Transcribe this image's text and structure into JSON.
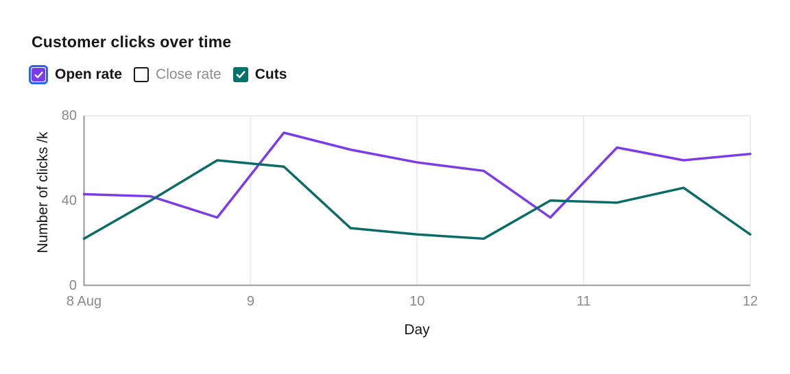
{
  "title": "Customer clicks over time",
  "legend": {
    "items": [
      {
        "label": "Open rate",
        "checked": true,
        "focused": true,
        "color": "#7c3aed"
      },
      {
        "label": "Close rate",
        "checked": false,
        "focused": false,
        "color": "#ffffff"
      },
      {
        "label": "Cuts",
        "checked": true,
        "focused": false,
        "color": "#00716b"
      }
    ]
  },
  "chart_data": {
    "type": "line",
    "title": "Customer clicks over time",
    "xlabel": "Day",
    "ylabel": "Number of clicks /k",
    "x": [
      8,
      8.4,
      8.8,
      9.2,
      9.6,
      10,
      10.4,
      10.8,
      11.2,
      11.6,
      12
    ],
    "x_ticks": [
      8,
      9,
      10,
      11,
      12
    ],
    "x_tick_labels": [
      "8 Aug",
      "9",
      "10",
      "11",
      "12"
    ],
    "y_ticks": [
      0,
      40,
      80
    ],
    "ylim": [
      0,
      80
    ],
    "xlim": [
      8,
      12
    ],
    "grid": "vertical-gridlines-plus-top-right-frame",
    "legend_position": "top-left",
    "series": [
      {
        "name": "Open rate",
        "color": "#7c3aed",
        "visible": true,
        "values": [
          43,
          42,
          32,
          72,
          64,
          58,
          54,
          32,
          65,
          59,
          62
        ]
      },
      {
        "name": "Close rate",
        "color": "#ffffff",
        "visible": false,
        "values": []
      },
      {
        "name": "Cuts",
        "color": "#0b6b66",
        "visible": true,
        "values": [
          22,
          40,
          59,
          56,
          27,
          24,
          22,
          40,
          39,
          46,
          24
        ]
      }
    ]
  },
  "colors": {
    "background": "#ffffff",
    "text": "#161616",
    "muted_text": "#8d8d8d",
    "tick_text": "#8a8a8a",
    "axis_line": "#979797",
    "gridline": "#ececec",
    "focus_ring": "#2563ff",
    "open_rate": "#7c3aed",
    "cuts": "#0b6b66"
  }
}
